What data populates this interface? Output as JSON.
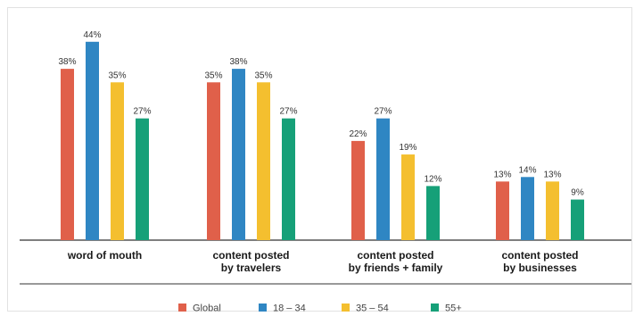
{
  "chart_data": {
    "type": "bar",
    "categories": [
      [
        "word of mouth"
      ],
      [
        "content posted",
        "by travelers"
      ],
      [
        "content posted",
        "by friends + family"
      ],
      [
        "content posted",
        "by businesses"
      ]
    ],
    "series": [
      {
        "name": "Global",
        "color": "#e0604a",
        "values": [
          38,
          35,
          22,
          13
        ]
      },
      {
        "name": "18 – 34",
        "color": "#2f86c3",
        "values": [
          44,
          38,
          27,
          14
        ]
      },
      {
        "name": "35 – 54",
        "color": "#f4bf2f",
        "values": [
          35,
          35,
          19,
          13
        ]
      },
      {
        "name": "55+",
        "color": "#16a078",
        "values": [
          27,
          27,
          12,
          9
        ]
      }
    ],
    "value_suffix": "%",
    "ylim": [
      0,
      50
    ],
    "grid": false,
    "legend_position": "bottom"
  }
}
